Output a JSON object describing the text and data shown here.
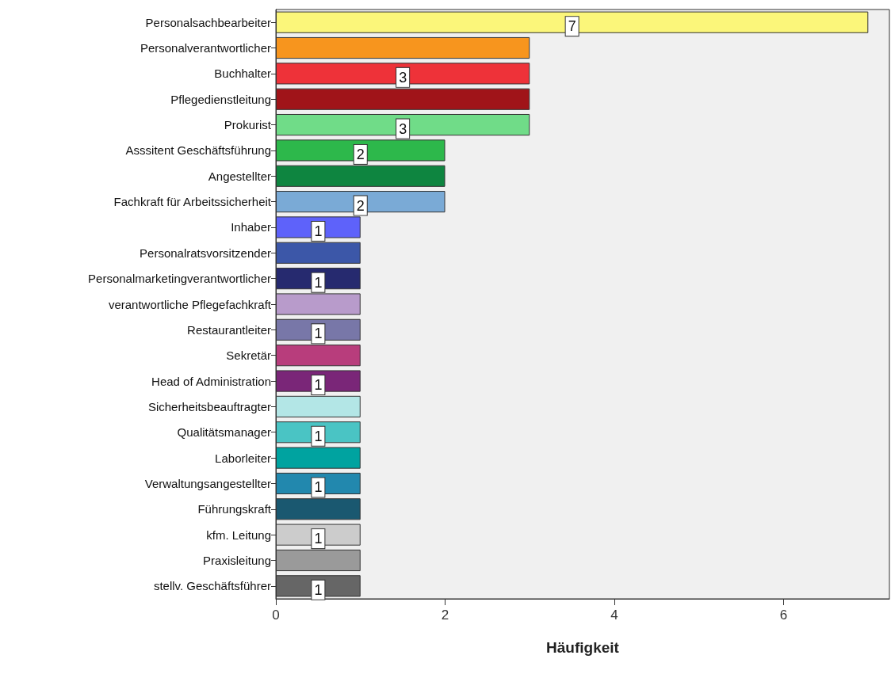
{
  "chart_data": {
    "type": "bar",
    "orientation": "horizontal",
    "xlabel": "Häufigkeit",
    "categories": [
      "Personalsachbearbeiter",
      "Personalverantwortlicher",
      "Buchhalter",
      "Pflegedienstleitung",
      "Prokurist",
      "Asssitent Geschäftsführung",
      "Angestellter",
      "Fachkraft für Arbeitssicherheit",
      "Inhaber",
      "Personalratsvorsitzender",
      "Personalmarketingverantwortlicher",
      "verantwortliche Pflegefachkraft",
      "Restaurantleiter",
      "Sekretär",
      "Head of Administration",
      "Sicherheitsbeauftragter",
      "Qualitätsmanager",
      "Laborleiter",
      "Verwaltungsangestellter",
      "Führungskraft",
      "kfm. Leitung",
      "Praxisleitung",
      "stellv. Geschäftsführer"
    ],
    "values": [
      7,
      3,
      3,
      3,
      3,
      2,
      2,
      2,
      1,
      1,
      1,
      1,
      1,
      1,
      1,
      1,
      1,
      1,
      1,
      1,
      1,
      1,
      1
    ],
    "value_labels": [
      "7",
      null,
      "3",
      null,
      "3",
      "2",
      null,
      "2",
      "1",
      null,
      "1",
      null,
      "1",
      null,
      "1",
      null,
      "1",
      null,
      "1",
      null,
      "1",
      null,
      "1"
    ],
    "colors": [
      "#fbf67a",
      "#f7951e",
      "#ee3239",
      "#a01419",
      "#70dc88",
      "#2db84b",
      "#0e8540",
      "#7aaad6",
      "#5e62fa",
      "#3c57a8",
      "#262a6f",
      "#b89bcb",
      "#7877a8",
      "#b83d7c",
      "#7a2678",
      "#b3e6e6",
      "#4ac4c4",
      "#00a3a0",
      "#2288ae",
      "#1a5870",
      "#cccccc",
      "#9a9a9a",
      "#666666"
    ],
    "xlim": [
      0,
      7.25
    ],
    "xticks": [
      0,
      2,
      4,
      6
    ],
    "grid": false
  }
}
